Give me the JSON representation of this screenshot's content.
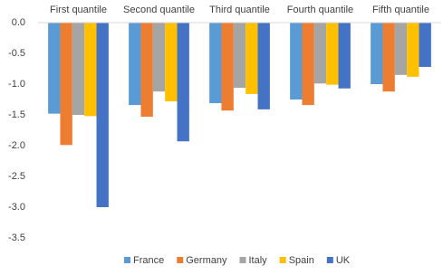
{
  "chart_data": {
    "type": "bar",
    "categories": [
      "First quantile",
      "Second quantile",
      "Third quantile",
      "Fourth quantile",
      "Fifth quantile"
    ],
    "series": [
      {
        "name": "France",
        "color": "#5b9bd5",
        "values": [
          -1.48,
          -1.34,
          -1.31,
          -1.25,
          -1.0
        ]
      },
      {
        "name": "Germany",
        "color": "#ed7d31",
        "values": [
          -1.99,
          -1.53,
          -1.43,
          -1.34,
          -1.12
        ]
      },
      {
        "name": "Italy",
        "color": "#a5a5a5",
        "values": [
          -1.5,
          -1.12,
          -1.06,
          -0.99,
          -0.85
        ]
      },
      {
        "name": "Spain",
        "color": "#ffc000",
        "values": [
          -1.52,
          -1.28,
          -1.16,
          -1.01,
          -0.88
        ]
      },
      {
        "name": "UK",
        "color": "#4472c4",
        "values": [
          -3.0,
          -1.93,
          -1.41,
          -1.07,
          -0.72
        ]
      }
    ],
    "ylim": [
      -3.5,
      0
    ],
    "yticks": [
      {
        "value": 0,
        "label": "0.0"
      },
      -0.5,
      {
        "value": -1,
        "label": "-1.0"
      },
      -1.5,
      {
        "value": -2,
        "label": "-2.0"
      },
      -2.5,
      {
        "value": -3,
        "label": "-3.0"
      },
      -3.5
    ],
    "grid": false,
    "legend": "bottom"
  }
}
